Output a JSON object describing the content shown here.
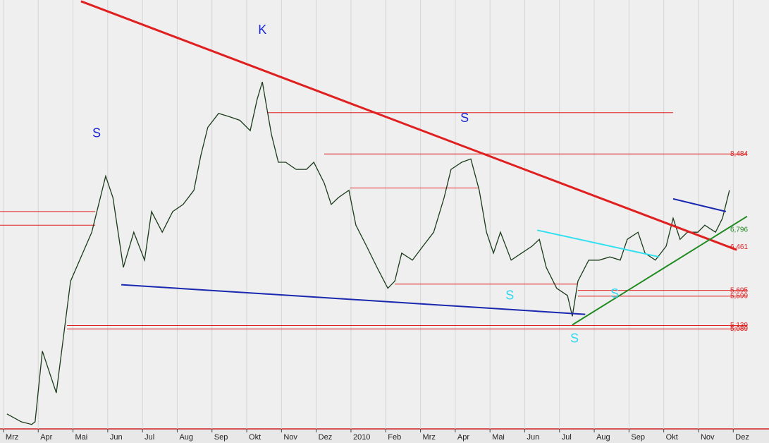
{
  "chart_data": {
    "type": "line",
    "log_scale": true,
    "grid": true,
    "color": "#1a3a1a",
    "xlim": [
      -0.1,
      21.4
    ],
    "ylim": [
      3.8,
      13.3
    ],
    "xticks": [
      {
        "value": 0,
        "label": "Mrz"
      },
      {
        "value": 1,
        "label": "Apr"
      },
      {
        "value": 2,
        "label": "Mai"
      },
      {
        "value": 3,
        "label": "Jun"
      },
      {
        "value": 4,
        "label": "Jul"
      },
      {
        "value": 5,
        "label": "Aug"
      },
      {
        "value": 6,
        "label": "Sep"
      },
      {
        "value": 7,
        "label": "Okt"
      },
      {
        "value": 8,
        "label": "Nov"
      },
      {
        "value": 9,
        "label": "Dez"
      },
      {
        "value": 10,
        "label": "2010"
      },
      {
        "value": 11,
        "label": "Feb"
      },
      {
        "value": 12,
        "label": "Mrz"
      },
      {
        "value": 13,
        "label": "Apr"
      },
      {
        "value": 14,
        "label": "Mai"
      },
      {
        "value": 15,
        "label": "Jun"
      },
      {
        "value": 16,
        "label": "Jul"
      },
      {
        "value": 17,
        "label": "Aug"
      },
      {
        "value": 18,
        "label": "Sep"
      },
      {
        "value": 19,
        "label": "Okt"
      },
      {
        "value": 20,
        "label": "Nov"
      },
      {
        "value": 21,
        "label": "Dez"
      }
    ],
    "x": [
      0.1,
      0.51,
      0.81,
      0.91,
      1.12,
      1.52,
      1.93,
      2.54,
      2.94,
      3.15,
      3.45,
      3.75,
      4.06,
      4.26,
      4.57,
      4.87,
      5.17,
      5.48,
      5.68,
      5.88,
      6.19,
      6.49,
      6.8,
      7.1,
      7.3,
      7.45,
      7.57,
      7.71,
      7.91,
      8.12,
      8.42,
      8.72,
      8.93,
      9.23,
      9.43,
      9.64,
      9.94,
      10.14,
      10.45,
      10.75,
      11.06,
      11.26,
      11.46,
      11.77,
      12.07,
      12.38,
      12.68,
      12.88,
      13.19,
      13.45,
      13.69,
      13.9,
      14.1,
      14.3,
      14.61,
      14.91,
      15.21,
      15.42,
      15.62,
      15.92,
      16.23,
      16.37,
      16.53,
      16.84,
      17.14,
      17.45,
      17.75,
      17.95,
      18.26,
      18.46,
      18.76,
      19.07,
      19.27,
      19.47,
      19.68,
      19.98,
      20.18,
      20.49,
      20.69,
      20.89
    ],
    "values": [
      3.97,
      3.88,
      3.85,
      3.88,
      4.77,
      4.22,
      5.85,
      6.75,
      7.95,
      7.47,
      6.09,
      6.75,
      6.22,
      7.17,
      6.75,
      7.17,
      7.32,
      7.63,
      8.45,
      9.17,
      9.55,
      9.46,
      9.36,
      9.08,
      9.95,
      10.47,
      9.75,
      8.98,
      8.28,
      8.28,
      8.11,
      8.11,
      8.28,
      7.79,
      7.32,
      7.47,
      7.63,
      6.89,
      6.48,
      6.09,
      5.73,
      5.85,
      6.35,
      6.22,
      6.48,
      6.75,
      7.47,
      8.11,
      8.28,
      8.36,
      7.63,
      6.75,
      6.35,
      6.75,
      6.22,
      6.35,
      6.48,
      6.61,
      6.09,
      5.73,
      5.61,
      5.28,
      5.85,
      6.22,
      6.22,
      6.28,
      6.22,
      6.61,
      6.75,
      6.35,
      6.22,
      6.48,
      7.03,
      6.61,
      6.75,
      6.75,
      6.89,
      6.75,
      7.03,
      7.63
    ],
    "trend_lines": [
      {
        "color": "#e02020",
        "x": [
          2.23,
          21.1
        ],
        "values": [
          13.25,
          6.41
        ]
      },
      {
        "color": "#1a28b0",
        "x": [
          3.39,
          16.74
        ],
        "values": [
          5.79,
          5.31
        ]
      },
      {
        "color": "#1f8a1f",
        "x": [
          16.37,
          21.4
        ],
        "values": [
          5.15,
          7.07
        ]
      },
      {
        "color": "#30e0f0",
        "x": [
          15.36,
          18.87
        ],
        "values": [
          6.79,
          6.28
        ]
      },
      {
        "color": "#1a28b0",
        "x": [
          19.27,
          20.79
        ],
        "values": [
          7.44,
          7.17
        ]
      }
    ],
    "levels": [
      {
        "value": 9.57,
        "x_from": 7.61,
        "x_to": 19.27,
        "color": "#e02020"
      },
      {
        "value": 8.484,
        "x_from": 9.23,
        "x_to": 21.4,
        "color": "#e02020"
      },
      {
        "value": 7.68,
        "x_from": 9.98,
        "x_to": 13.69,
        "color": "#e02020"
      },
      {
        "value": 7.17,
        "x_from": -0.1,
        "x_to": 2.64,
        "color": "#e02020"
      },
      {
        "value": 6.89,
        "x_from": -0.1,
        "x_to": 2.64,
        "color": "#e02020"
      },
      {
        "value": 5.8,
        "x_from": 11.26,
        "x_to": 16.53,
        "color": "#e02020"
      },
      {
        "value": 5.695,
        "x_from": 16.53,
        "x_to": 21.4,
        "color": "#e02020"
      },
      {
        "value": 5.599,
        "x_from": 16.53,
        "x_to": 21.4,
        "color": "#e02020"
      },
      {
        "value": 5.139,
        "x_from": 1.83,
        "x_to": 21.4,
        "color": "#e02020"
      },
      {
        "value": 5.089,
        "x_from": 1.83,
        "x_to": 21.4,
        "color": "#e02020"
      }
    ],
    "price_labels": [
      {
        "value": 8.484,
        "label": "8,484",
        "color": "#e02020"
      },
      {
        "value": 6.796,
        "label": "6,796",
        "color": "#1f8a1f"
      },
      {
        "value": 6.461,
        "label": "6,461",
        "color": "#e02020"
      },
      {
        "value": 5.695,
        "label": "5,695",
        "color": "#e02020"
      },
      {
        "value": 5.599,
        "label": "5,599",
        "color": "#e02020"
      },
      {
        "value": 5.139,
        "label": "5,139",
        "color": "#e02020"
      },
      {
        "value": 5.089,
        "label": "5,089",
        "color": "#e02020"
      }
    ],
    "annotations": [
      {
        "text": "K",
        "x": 7.45,
        "y": 12.16,
        "color": "#1a28d0"
      },
      {
        "text": "S",
        "x": 2.68,
        "y": 9.0,
        "color": "#1a28d0"
      },
      {
        "text": "S",
        "x": 13.27,
        "y": 9.4,
        "color": "#1a28d0"
      },
      {
        "text": "S",
        "x": 14.57,
        "y": 5.6,
        "color": "#30d8f0"
      },
      {
        "text": "S",
        "x": 16.43,
        "y": 4.94,
        "color": "#30d8f0"
      },
      {
        "text": "S",
        "x": 17.59,
        "y": 5.63,
        "color": "#30d8f0"
      }
    ]
  }
}
